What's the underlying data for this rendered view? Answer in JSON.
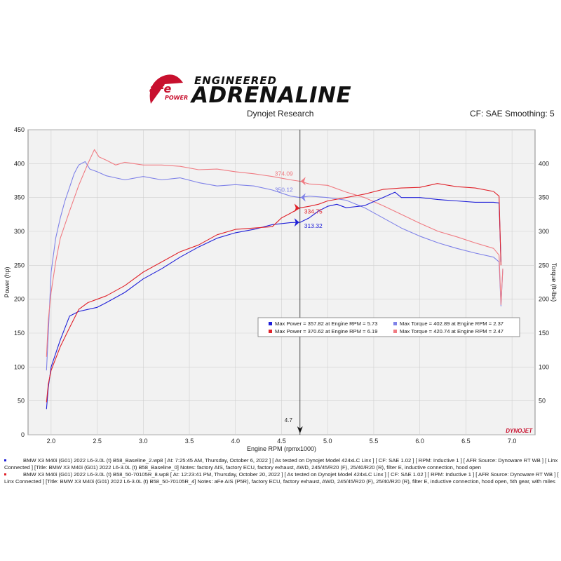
{
  "brand": {
    "logo_text": "aFe",
    "logo_sub": "POWER",
    "tagline_top": "ENGINEERED",
    "tagline_main": "ADRENALINE"
  },
  "header": {
    "left": "Dynojet Research",
    "right": "CF: SAE Smoothing: 5"
  },
  "watermark": "DYNOJET",
  "colors": {
    "baseline_power": "#1f1fd8",
    "modified_power": "#e0222a",
    "baseline_torque": "#7f82e8",
    "modified_torque": "#f07b82"
  },
  "cursor": {
    "x": 4.7,
    "label": "4.7"
  },
  "cursor_readouts": [
    {
      "label": "374.09",
      "axis": "right",
      "value": 374.09,
      "series": "modified_torque"
    },
    {
      "label": "350.12",
      "axis": "right",
      "value": 350.12,
      "series": "baseline_torque"
    },
    {
      "label": "334.75",
      "axis": "left",
      "value": 334.75,
      "series": "modified_power"
    },
    {
      "label": "313.32",
      "axis": "left",
      "value": 313.32,
      "series": "baseline_power"
    }
  ],
  "legend": [
    [
      {
        "text": "Max Power = 357.82 at Engine RPM = 5.73",
        "color": "#1f1fd8"
      },
      {
        "text": "Max Torque = 402.89 at Engine RPM = 2.37",
        "color": "#7f82e8"
      }
    ],
    [
      {
        "text": "Max Power = 370.62 at Engine RPM = 6.19",
        "color": "#e0222a"
      },
      {
        "text": "Max Torque = 420.74 at Engine RPM = 2.47",
        "color": "#f07b82"
      }
    ]
  ],
  "runs": [
    {
      "color": "#1f1fd8",
      "text": "BMW X3 M40i (G01) 2022 L6-3.0L (t) B58_Baseline_2.wp8 [ At: 7:25:45 AM, Thursday, October 6, 2022 ] [ As tested on Dynojet Model 424xLC Linx ] [ CF: SAE 1.02 ] [ RPM: Inductive 1 ] [ AFR Source: Dynoware RT WB ] [ Linx Connected ] [Title: BMW X3 M40i (G01) 2022 L6-3.0L (t) B58_Baseline_0]  Notes: factory AIS, factory ECU, factory exhaust, AWD, 245/45/R20 (F), 25/40/R20 (R), filter E, inductive connection, hood open"
    },
    {
      "color": "#e0222a",
      "text": "BMW X3 M40i (G01) 2022 L6-3.0L (t) B58_50-70105R_8.wp8 [ At: 12:23:41 PM, Thursday, October 20, 2022 ] [ As tested on Dynojet Model 424xLC Linx ] [ CF: SAE 1.02 ] [ RPM: Inductive 1 ] [ AFR Source: Dynoware RT WB ] [ Linx Connected ] [Title: BMW X3 M40i (G01) 2022 L6-3.0L (t) B58_50-70105R_4]  Notes: aFe AIS (P5R), factory ECU, factory exhaust, AWD, 245/45/R20 (F), 25/40/R20 (R), filter E, inductive connection, hood open, 5th gear, with miles"
    }
  ],
  "chart_data": {
    "type": "line",
    "xlabel": "Engine RPM (rpmx1000)",
    "ylabel": "Power (hp)",
    "y2label": "Torque (ft-lbs)",
    "xlim": [
      1.75,
      7.25
    ],
    "ylim": [
      0,
      450
    ],
    "y2lim": [
      0,
      450
    ],
    "xticks": [
      2.0,
      2.5,
      3.0,
      3.5,
      4.0,
      4.5,
      5.0,
      5.5,
      6.0,
      6.5,
      7.0
    ],
    "xtick_labels": [
      "2.0",
      "2.5",
      "3.0",
      "3.5",
      "4.0",
      "4.5",
      "5.0",
      "5.5",
      "6.0",
      "6.5",
      "7.0"
    ],
    "yticks": [
      0,
      50,
      100,
      150,
      200,
      250,
      300,
      350,
      400,
      450
    ],
    "ytick_labels": [
      "0",
      "50",
      "100",
      "150",
      "200",
      "250",
      "300",
      "350",
      "400",
      "450"
    ],
    "y2ticks": [
      50,
      100,
      150,
      200,
      250,
      300,
      350,
      400
    ],
    "y2tick_labels": [
      "50",
      "100",
      "150",
      "200",
      "250",
      "300",
      "350",
      "400"
    ],
    "grid": true,
    "legend_position": "center-right",
    "series": [
      {
        "key": "baseline_torque",
        "axis": "right",
        "color": "#7f82e8",
        "x": [
          1.95,
          1.97,
          2.0,
          2.05,
          2.1,
          2.15,
          2.2,
          2.25,
          2.3,
          2.34,
          2.37,
          2.42,
          2.5,
          2.6,
          2.7,
          2.8,
          3.0,
          3.2,
          3.4,
          3.6,
          3.8,
          4.0,
          4.2,
          4.4,
          4.6,
          4.7,
          4.8,
          5.0,
          5.2,
          5.4,
          5.6,
          5.8,
          6.0,
          6.2,
          6.4,
          6.6,
          6.8,
          6.86,
          6.88,
          6.9
        ],
        "y": [
          95,
          150,
          240,
          290,
          320,
          345,
          365,
          385,
          398,
          401,
          402.89,
          392,
          388,
          382,
          379,
          376,
          381,
          376,
          379,
          372,
          367,
          369,
          367,
          361,
          352,
          350,
          352,
          350,
          346,
          335,
          320,
          305,
          293,
          283,
          275,
          268,
          262,
          255,
          190,
          245
        ]
      },
      {
        "key": "modified_torque",
        "axis": "right",
        "color": "#f07b82",
        "x": [
          1.95,
          1.97,
          2.0,
          2.05,
          2.1,
          2.2,
          2.3,
          2.4,
          2.47,
          2.52,
          2.6,
          2.7,
          2.8,
          3.0,
          3.2,
          3.4,
          3.6,
          3.8,
          4.0,
          4.2,
          4.4,
          4.6,
          4.7,
          4.8,
          5.0,
          5.2,
          5.4,
          5.6,
          5.8,
          6.0,
          6.2,
          6.4,
          6.6,
          6.8,
          6.86,
          6.88,
          6.9
        ],
        "y": [
          115,
          170,
          210,
          255,
          290,
          330,
          368,
          400,
          420.74,
          410,
          405,
          398,
          402,
          398,
          398,
          396,
          391,
          392,
          388,
          385,
          381,
          376,
          374,
          370,
          368,
          358,
          350,
          338,
          325,
          312,
          300,
          292,
          283,
          275,
          265,
          192,
          245
        ]
      },
      {
        "key": "baseline_power",
        "axis": "left",
        "color": "#1f1fd8",
        "x": [
          1.95,
          1.97,
          2.0,
          2.1,
          2.2,
          2.3,
          2.4,
          2.5,
          2.6,
          2.8,
          3.0,
          3.2,
          3.4,
          3.6,
          3.8,
          4.0,
          4.2,
          4.4,
          4.6,
          4.7,
          4.8,
          4.9,
          5.0,
          5.1,
          5.2,
          5.4,
          5.6,
          5.73,
          5.8,
          6.0,
          6.2,
          6.4,
          6.6,
          6.8,
          6.86,
          6.88
        ],
        "y": [
          38,
          70,
          100,
          140,
          175,
          182,
          185,
          188,
          195,
          210,
          230,
          245,
          262,
          277,
          290,
          298,
          303,
          310,
          313,
          313.32,
          320,
          330,
          337,
          340,
          335,
          338,
          350,
          357.82,
          350,
          350,
          347,
          345,
          343,
          343,
          342,
          255
        ]
      },
      {
        "key": "modified_power",
        "axis": "left",
        "color": "#e0222a",
        "x": [
          1.95,
          1.97,
          2.0,
          2.1,
          2.2,
          2.3,
          2.4,
          2.5,
          2.6,
          2.8,
          3.0,
          3.2,
          3.4,
          3.6,
          3.8,
          4.0,
          4.2,
          4.4,
          4.5,
          4.6,
          4.7,
          4.8,
          4.9,
          5.0,
          5.2,
          5.4,
          5.6,
          5.8,
          6.0,
          6.19,
          6.4,
          6.6,
          6.8,
          6.86,
          6.88
        ],
        "y": [
          48,
          75,
          95,
          130,
          158,
          185,
          195,
          200,
          205,
          220,
          240,
          255,
          270,
          280,
          295,
          303,
          305,
          307,
          320,
          327,
          334.75,
          337,
          340,
          345,
          350,
          355,
          362,
          364,
          365,
          370.62,
          366,
          364,
          359,
          352,
          250
        ]
      }
    ]
  }
}
